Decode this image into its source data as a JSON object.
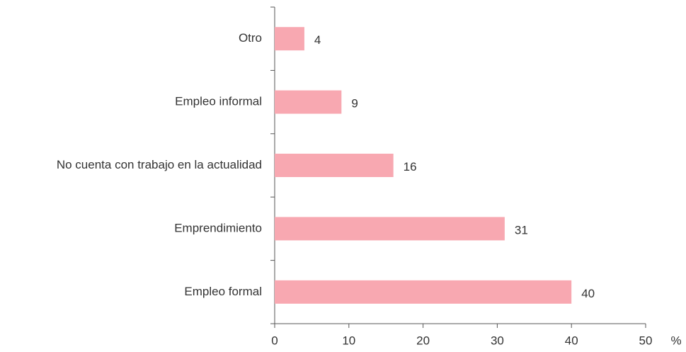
{
  "chart_data": {
    "type": "barh",
    "categories": [
      "Otro",
      "Empleo informal",
      "No cuenta con trabajo en la actualidad",
      "Emprendimiento",
      "Empleo formal"
    ],
    "values": [
      4,
      9,
      16,
      31,
      40
    ],
    "color": "#f8a8b1",
    "xlim": [
      0,
      50
    ],
    "xticks": [
      0,
      10,
      20,
      30,
      40,
      50
    ],
    "x_label": "%"
  }
}
